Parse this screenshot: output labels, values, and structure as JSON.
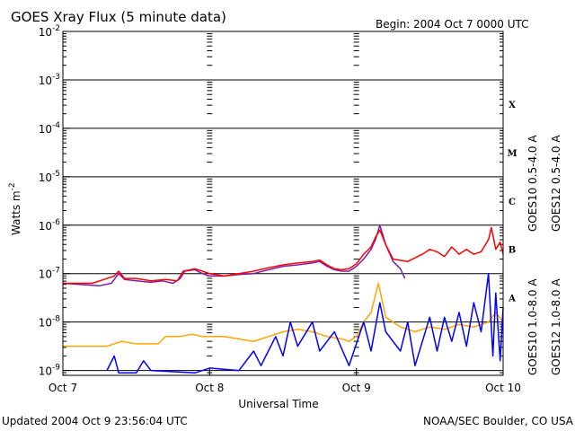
{
  "chart_data": {
    "type": "line",
    "title": "GOES Xray Flux (5 minute data)",
    "begin_label": "Begin:  2004 Oct 7 0000 UTC",
    "xlabel": "Universal Time",
    "ylabel_text": "Watts m",
    "ylabel_sup": "-2",
    "x_range_days": [
      0,
      3
    ],
    "y_range_log10": [
      -9.1,
      -2
    ],
    "x_ticks": [
      {
        "day": 0,
        "label": "Oct 7"
      },
      {
        "day": 1,
        "label": "Oct 8"
      },
      {
        "day": 2,
        "label": "Oct 9"
      },
      {
        "day": 3,
        "label": "Oct 10"
      }
    ],
    "y_ticks": [
      {
        "exp": -2,
        "base": "10",
        "sup": "-2"
      },
      {
        "exp": -3,
        "base": "10",
        "sup": "-3"
      },
      {
        "exp": -4,
        "base": "10",
        "sup": "-4"
      },
      {
        "exp": -5,
        "base": "10",
        "sup": "-5"
      },
      {
        "exp": -6,
        "base": "10",
        "sup": "-6"
      },
      {
        "exp": -7,
        "base": "10",
        "sup": "-7"
      },
      {
        "exp": -8,
        "base": "10",
        "sup": "-8"
      },
      {
        "exp": -9,
        "base": "10",
        "sup": "-9"
      }
    ],
    "flare_classes": [
      {
        "label": "X",
        "exp": -3.5
      },
      {
        "label": "M",
        "exp": -4.5
      },
      {
        "label": "C",
        "exp": -5.5
      },
      {
        "label": "B",
        "exp": -6.5
      },
      {
        "label": "A",
        "exp": -7.5
      }
    ],
    "series": [
      {
        "name": "GOES10 1.0-8.0 A",
        "color": "#7d1fa8",
        "points": [
          [
            0,
            -7.2
          ],
          [
            0.25,
            -7.25
          ],
          [
            0.33,
            -7.2
          ],
          [
            0.38,
            -7.0
          ],
          [
            0.42,
            -7.12
          ],
          [
            0.5,
            -7.15
          ],
          [
            0.6,
            -7.18
          ],
          [
            0.68,
            -7.15
          ],
          [
            0.75,
            -7.2
          ],
          [
            0.8,
            -7.1
          ],
          [
            0.83,
            -6.95
          ],
          [
            0.9,
            -6.92
          ],
          [
            0.95,
            -7.0
          ],
          [
            1.0,
            -7.05
          ],
          [
            1.1,
            -7.05
          ],
          [
            1.2,
            -7.02
          ],
          [
            1.3,
            -7.0
          ],
          [
            1.4,
            -6.92
          ],
          [
            1.5,
            -6.85
          ],
          [
            1.6,
            -6.82
          ],
          [
            1.7,
            -6.78
          ],
          [
            1.75,
            -6.75
          ],
          [
            1.8,
            -6.85
          ],
          [
            1.85,
            -6.92
          ],
          [
            1.9,
            -6.95
          ],
          [
            1.95,
            -6.95
          ],
          [
            2.0,
            -6.85
          ],
          [
            2.05,
            -6.7
          ],
          [
            2.1,
            -6.5
          ],
          [
            2.13,
            -6.3
          ],
          [
            2.16,
            -6.0
          ],
          [
            2.2,
            -6.4
          ],
          [
            2.25,
            -6.75
          ],
          [
            2.3,
            -6.9
          ],
          [
            2.33,
            -7.1
          ]
        ]
      },
      {
        "name": "GOES12 1.0-8.0 A",
        "color": "#ff0000",
        "points": [
          [
            0,
            -7.2
          ],
          [
            0.2,
            -7.2
          ],
          [
            0.35,
            -7.05
          ],
          [
            0.38,
            -6.95
          ],
          [
            0.42,
            -7.1
          ],
          [
            0.5,
            -7.1
          ],
          [
            0.6,
            -7.15
          ],
          [
            0.7,
            -7.12
          ],
          [
            0.78,
            -7.15
          ],
          [
            0.82,
            -6.95
          ],
          [
            0.9,
            -6.9
          ],
          [
            0.95,
            -6.95
          ],
          [
            1.0,
            -7.0
          ],
          [
            1.1,
            -7.05
          ],
          [
            1.2,
            -7.0
          ],
          [
            1.3,
            -6.95
          ],
          [
            1.4,
            -6.88
          ],
          [
            1.5,
            -6.82
          ],
          [
            1.6,
            -6.78
          ],
          [
            1.7,
            -6.75
          ],
          [
            1.75,
            -6.72
          ],
          [
            1.8,
            -6.82
          ],
          [
            1.85,
            -6.9
          ],
          [
            1.9,
            -6.92
          ],
          [
            1.95,
            -6.9
          ],
          [
            2.0,
            -6.8
          ],
          [
            2.05,
            -6.6
          ],
          [
            2.1,
            -6.45
          ],
          [
            2.13,
            -6.25
          ],
          [
            2.16,
            -6.1
          ],
          [
            2.2,
            -6.4
          ],
          [
            2.25,
            -6.7
          ],
          [
            2.35,
            -6.75
          ],
          [
            2.45,
            -6.6
          ],
          [
            2.5,
            -6.5
          ],
          [
            2.55,
            -6.55
          ],
          [
            2.6,
            -6.65
          ],
          [
            2.65,
            -6.45
          ],
          [
            2.7,
            -6.6
          ],
          [
            2.75,
            -6.5
          ],
          [
            2.8,
            -6.6
          ],
          [
            2.85,
            -6.55
          ],
          [
            2.9,
            -6.3
          ],
          [
            2.92,
            -6.05
          ],
          [
            2.95,
            -6.5
          ],
          [
            2.98,
            -6.35
          ],
          [
            3.0,
            -6.6
          ]
        ]
      },
      {
        "name": "GOES10 0.5-4.0 A",
        "color": "#ffa500",
        "points": [
          [
            0,
            -8.5
          ],
          [
            0.15,
            -8.5
          ],
          [
            0.3,
            -8.5
          ],
          [
            0.4,
            -8.4
          ],
          [
            0.5,
            -8.45
          ],
          [
            0.65,
            -8.45
          ],
          [
            0.7,
            -8.3
          ],
          [
            0.75,
            -8.3
          ],
          [
            0.8,
            -8.3
          ],
          [
            0.88,
            -8.25
          ],
          [
            0.95,
            -8.3
          ],
          [
            1.0,
            -8.3
          ],
          [
            1.1,
            -8.3
          ],
          [
            1.2,
            -8.35
          ],
          [
            1.3,
            -8.4
          ],
          [
            1.4,
            -8.3
          ],
          [
            1.5,
            -8.2
          ],
          [
            1.6,
            -8.15
          ],
          [
            1.7,
            -8.2
          ],
          [
            1.8,
            -8.3
          ],
          [
            1.9,
            -8.35
          ],
          [
            1.95,
            -8.4
          ],
          [
            2.0,
            -8.3
          ],
          [
            2.05,
            -8.0
          ],
          [
            2.1,
            -7.8
          ],
          [
            2.15,
            -7.2
          ],
          [
            2.2,
            -7.9
          ],
          [
            2.3,
            -8.1
          ],
          [
            2.4,
            -8.2
          ],
          [
            2.5,
            -8.1
          ],
          [
            2.6,
            -8.15
          ],
          [
            2.7,
            -8.05
          ],
          [
            2.8,
            -8.1
          ],
          [
            2.9,
            -8.0
          ],
          [
            2.95,
            -7.8
          ],
          [
            3.0,
            -8.0
          ]
        ]
      },
      {
        "name": "GOES12 0.5-4.0 A",
        "color": "#0000ff",
        "points": [
          [
            0.3,
            -9.0
          ],
          [
            0.35,
            -8.7
          ],
          [
            0.38,
            -9.05
          ],
          [
            0.5,
            -9.05
          ],
          [
            0.55,
            -8.8
          ],
          [
            0.6,
            -9.0
          ],
          [
            0.9,
            -9.05
          ],
          [
            1.0,
            -8.95
          ],
          [
            1.2,
            -9.0
          ],
          [
            1.3,
            -8.6
          ],
          [
            1.35,
            -8.9
          ],
          [
            1.45,
            -8.3
          ],
          [
            1.5,
            -8.7
          ],
          [
            1.55,
            -8.0
          ],
          [
            1.6,
            -8.5
          ],
          [
            1.7,
            -8.0
          ],
          [
            1.75,
            -8.6
          ],
          [
            1.85,
            -8.2
          ],
          [
            1.95,
            -8.9
          ],
          [
            2.05,
            -8.0
          ],
          [
            2.1,
            -8.6
          ],
          [
            2.16,
            -7.6
          ],
          [
            2.2,
            -8.2
          ],
          [
            2.3,
            -8.6
          ],
          [
            2.35,
            -8.0
          ],
          [
            2.4,
            -8.9
          ],
          [
            2.5,
            -7.9
          ],
          [
            2.55,
            -8.6
          ],
          [
            2.6,
            -7.9
          ],
          [
            2.65,
            -8.4
          ],
          [
            2.7,
            -7.8
          ],
          [
            2.75,
            -8.5
          ],
          [
            2.8,
            -7.6
          ],
          [
            2.85,
            -8.2
          ],
          [
            2.9,
            -7.0
          ],
          [
            2.93,
            -8.7
          ],
          [
            2.95,
            -7.4
          ],
          [
            2.98,
            -8.8
          ],
          [
            3.0,
            -7.7
          ]
        ]
      }
    ],
    "legend_left": [
      {
        "label": "GOES10 1.0-8.0 A",
        "color": "#7d1fa8"
      },
      {
        "label": "GOES10 0.5-4.0 A",
        "color": "#ffa500"
      }
    ],
    "legend_right": [
      {
        "label": "GOES12 1.0-8.0 A",
        "color": "#ff0000"
      },
      {
        "label": "GOES12 0.5-4.0 A",
        "color": "#0000ff"
      }
    ],
    "grid": "horizontal at each decade",
    "y_scale": "log",
    "footer_left": "Updated 2004 Oct  9 23:56:04 UTC",
    "footer_right": "NOAA/SEC Boulder, CO USA"
  }
}
